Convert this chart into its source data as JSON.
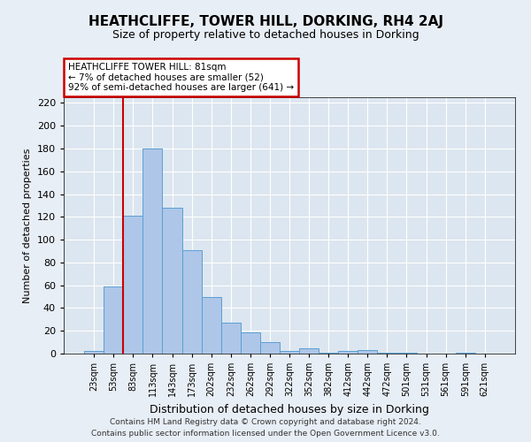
{
  "title": "HEATHCLIFFE, TOWER HILL, DORKING, RH4 2AJ",
  "subtitle": "Size of property relative to detached houses in Dorking",
  "xlabel": "Distribution of detached houses by size in Dorking",
  "ylabel": "Number of detached properties",
  "categories": [
    "23sqm",
    "53sqm",
    "83sqm",
    "113sqm",
    "143sqm",
    "173sqm",
    "202sqm",
    "232sqm",
    "262sqm",
    "292sqm",
    "322sqm",
    "352sqm",
    "382sqm",
    "412sqm",
    "442sqm",
    "472sqm",
    "501sqm",
    "531sqm",
    "561sqm",
    "591sqm",
    "621sqm"
  ],
  "values": [
    2,
    59,
    121,
    180,
    128,
    91,
    50,
    27,
    19,
    10,
    2,
    5,
    1,
    2,
    3,
    1,
    1,
    0,
    0,
    1,
    0
  ],
  "bar_color": "#aec6e8",
  "bar_edge_color": "#5a9fd4",
  "annotation_text": "HEATHCLIFFE TOWER HILL: 81sqm\n← 7% of detached houses are smaller (52)\n92% of semi-detached houses are larger (641) →",
  "annotation_box_color": "#ffffff",
  "annotation_box_edge": "#cc0000",
  "property_line_color": "#cc0000",
  "property_line_x": 1.5,
  "ylim": [
    0,
    225
  ],
  "yticks": [
    0,
    20,
    40,
    60,
    80,
    100,
    120,
    140,
    160,
    180,
    200,
    220
  ],
  "footer_line1": "Contains HM Land Registry data © Crown copyright and database right 2024.",
  "footer_line2": "Contains public sector information licensed under the Open Government Licence v3.0.",
  "background_color": "#e8eef5",
  "plot_bg_color": "#dce6f0",
  "grid_color": "#ffffff",
  "title_fontsize": 11,
  "subtitle_fontsize": 9,
  "ylabel_fontsize": 8,
  "xlabel_fontsize": 9
}
